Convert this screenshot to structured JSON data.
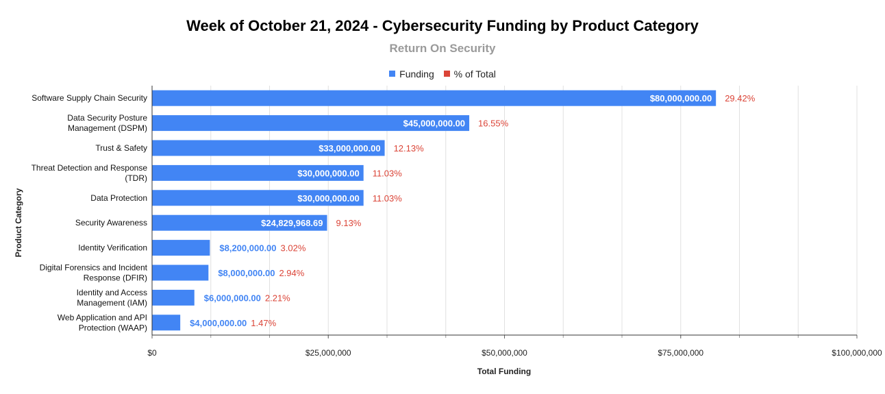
{
  "chart_data": {
    "type": "bar",
    "orientation": "horizontal",
    "title": "Week of October 21, 2024 - Cybersecurity Funding by Product Category",
    "subtitle": "Return On Security",
    "xlabel": "Total Funding",
    "ylabel": "Product Category",
    "xlim": [
      0,
      100000000
    ],
    "x_ticks": [
      {
        "value": 0,
        "label": "$0"
      },
      {
        "value": 25000000,
        "label": "$25,000,000"
      },
      {
        "value": 50000000,
        "label": "$50,000,000"
      },
      {
        "value": 75000000,
        "label": "$75,000,000"
      },
      {
        "value": 100000000,
        "label": "$100,000,000"
      }
    ],
    "legend": [
      {
        "name": "Funding",
        "color": "#4285f4"
      },
      {
        "name": "% of Total",
        "color": "#db4437"
      }
    ],
    "legend_position": "top-center",
    "categories": [
      [
        "Software Supply Chain Security"
      ],
      [
        "Data Security Posture",
        "Management (DSPM)"
      ],
      [
        "Trust & Safety"
      ],
      [
        "Threat Detection and Response",
        "(TDR)"
      ],
      [
        "Data Protection"
      ],
      [
        "Security Awareness"
      ],
      [
        "Identity Verification"
      ],
      [
        "Digital Forensics and Incident",
        "Response (DFIR)"
      ],
      [
        "Identity and Access",
        "Management (IAM)"
      ],
      [
        "Web Application and API",
        "Protection (WAAP)"
      ]
    ],
    "series": [
      {
        "name": "Funding",
        "values": [
          80000000,
          45000000,
          33000000,
          30000000,
          30000000,
          24829968.69,
          8200000,
          8000000,
          6000000,
          4000000
        ],
        "labels": [
          "$80,000,000.00",
          "$45,000,000.00",
          "$33,000,000.00",
          "$30,000,000.00",
          "$30,000,000.00",
          "$24,829,968.69",
          "$8,200,000.00",
          "$8,000,000.00",
          "$6,000,000.00",
          "$4,000,000.00"
        ]
      },
      {
        "name": "% of Total",
        "values": [
          29.42,
          16.55,
          12.13,
          11.03,
          11.03,
          9.13,
          3.02,
          2.94,
          2.21,
          1.47
        ],
        "labels": [
          "29.42%",
          "16.55%",
          "12.13%",
          "11.03%",
          "11.03%",
          "9.13%",
          "3.02%",
          "2.94%",
          "2.21%",
          "1.47%"
        ]
      }
    ],
    "colors": {
      "bar": "#4285f4",
      "bar_label_inside": "#ffffff",
      "bar_label_outside": "#4285f4",
      "percent": "#db4437",
      "grid": "#e0e0e0",
      "axis": "#333333"
    }
  }
}
